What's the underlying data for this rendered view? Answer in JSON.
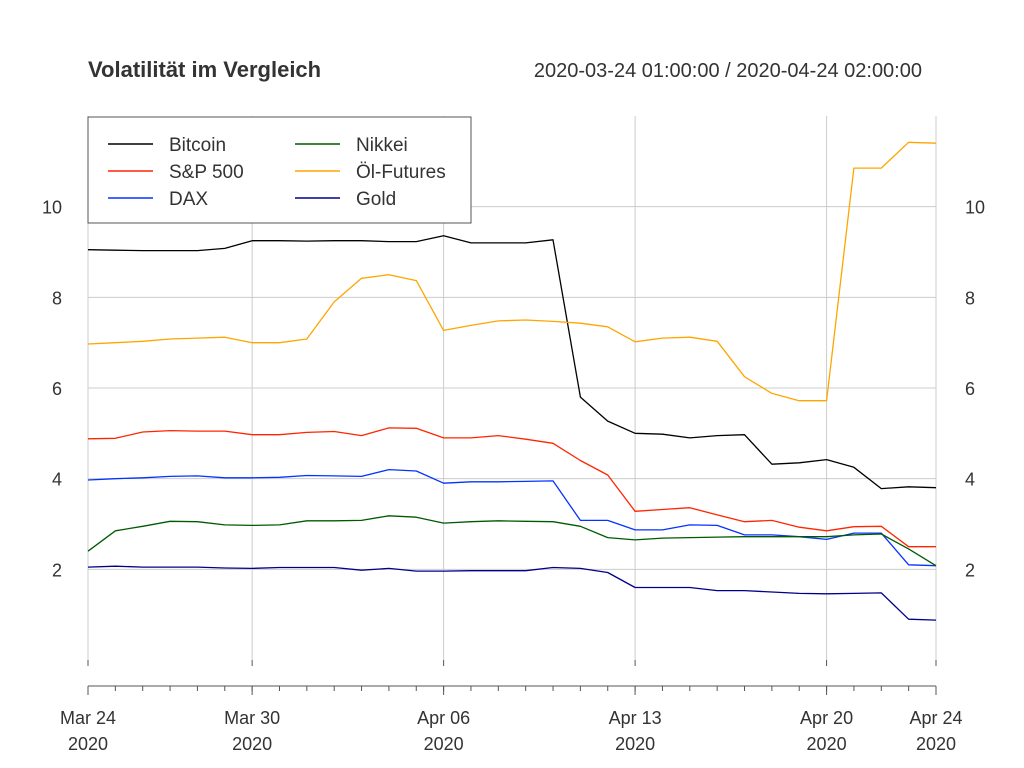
{
  "chart_data": {
    "type": "line",
    "title": "Volatilität im Vergleich",
    "date_range": "2020-03-24 01:00:00 / 2020-04-24 02:00:00",
    "xlabel": "",
    "ylabel": "",
    "x": [
      "2020-03-24",
      "2020-03-25",
      "2020-03-26",
      "2020-03-27",
      "2020-03-28",
      "2020-03-29",
      "2020-03-30",
      "2020-03-31",
      "2020-04-01",
      "2020-04-02",
      "2020-04-03",
      "2020-04-04",
      "2020-04-05",
      "2020-04-06",
      "2020-04-07",
      "2020-04-08",
      "2020-04-09",
      "2020-04-10",
      "2020-04-11",
      "2020-04-12",
      "2020-04-13",
      "2020-04-14",
      "2020-04-15",
      "2020-04-16",
      "2020-04-17",
      "2020-04-18",
      "2020-04-19",
      "2020-04-20",
      "2020-04-21",
      "2020-04-22",
      "2020-04-23",
      "2020-04-24"
    ],
    "xlim": [
      "2020-03-24",
      "2020-04-24"
    ],
    "ylim": [
      0,
      12
    ],
    "y_ticks": [
      2,
      4,
      6,
      8,
      10
    ],
    "x_ticks": [
      {
        "date": "2020-03-24",
        "line1": "Mar 24",
        "line2": "2020"
      },
      {
        "date": "2020-03-30",
        "line1": "Mar 30",
        "line2": "2020"
      },
      {
        "date": "2020-04-06",
        "line1": "Apr 06",
        "line2": "2020"
      },
      {
        "date": "2020-04-13",
        "line1": "Apr 13",
        "line2": "2020"
      },
      {
        "date": "2020-04-20",
        "line1": "Apr 20",
        "line2": "2020"
      },
      {
        "date": "2020-04-24",
        "line1": "Apr 24",
        "line2": "2020"
      }
    ],
    "grid": true,
    "legend_position": "top-left",
    "series": [
      {
        "name": "Bitcoin",
        "color": "#000000",
        "values": [
          9.05,
          9.04,
          9.03,
          9.03,
          9.03,
          9.08,
          9.25,
          9.25,
          9.24,
          9.25,
          9.25,
          9.23,
          9.23,
          9.36,
          9.2,
          9.2,
          9.2,
          9.27,
          5.8,
          5.27,
          5.0,
          4.98,
          4.9,
          4.95,
          4.97,
          4.32,
          4.35,
          4.42,
          4.25,
          3.78,
          3.82,
          3.8
        ]
      },
      {
        "name": "S&P 500",
        "color": "#ff2500",
        "values": [
          4.88,
          4.89,
          5.03,
          5.06,
          5.05,
          5.05,
          4.97,
          4.97,
          5.02,
          5.04,
          4.95,
          5.12,
          5.11,
          4.9,
          4.9,
          4.95,
          4.87,
          4.78,
          4.4,
          4.08,
          3.28,
          3.32,
          3.36,
          3.2,
          3.05,
          3.08,
          2.93,
          2.85,
          2.94,
          2.95,
          2.5,
          2.5
        ]
      },
      {
        "name": "DAX",
        "color": "#0433ff",
        "values": [
          3.97,
          4.0,
          4.02,
          4.05,
          4.06,
          4.02,
          4.02,
          4.03,
          4.07,
          4.06,
          4.05,
          4.2,
          4.17,
          3.9,
          3.93,
          3.93,
          3.94,
          3.95,
          3.08,
          3.08,
          2.87,
          2.87,
          2.98,
          2.97,
          2.76,
          2.76,
          2.72,
          2.66,
          2.8,
          2.8,
          2.1,
          2.08
        ]
      },
      {
        "name": "Nikkei",
        "color": "#005a00",
        "values": [
          2.4,
          2.85,
          2.95,
          3.06,
          3.05,
          2.98,
          2.97,
          2.98,
          3.07,
          3.07,
          3.08,
          3.18,
          3.15,
          3.02,
          3.05,
          3.07,
          3.06,
          3.05,
          2.95,
          2.7,
          2.65,
          2.69,
          2.7,
          2.71,
          2.72,
          2.72,
          2.72,
          2.72,
          2.76,
          2.78,
          2.45,
          2.08
        ]
      },
      {
        "name": "Öl-Futures",
        "color": "#ffa500",
        "values": [
          6.97,
          7.0,
          7.03,
          7.08,
          7.1,
          7.12,
          7.0,
          7.0,
          7.08,
          7.9,
          8.42,
          8.5,
          8.37,
          7.27,
          7.38,
          7.48,
          7.5,
          7.47,
          7.43,
          7.35,
          7.02,
          7.1,
          7.12,
          7.03,
          6.25,
          5.88,
          5.72,
          5.72,
          10.85,
          10.85,
          11.42,
          11.4
        ]
      },
      {
        "name": "Gold",
        "color": "#00008b",
        "values": [
          2.05,
          2.07,
          2.05,
          2.05,
          2.05,
          2.03,
          2.02,
          2.04,
          2.04,
          2.04,
          1.98,
          2.02,
          1.96,
          1.96,
          1.97,
          1.97,
          1.97,
          2.04,
          2.02,
          1.93,
          1.6,
          1.6,
          1.6,
          1.53,
          1.53,
          1.5,
          1.47,
          1.46,
          1.47,
          1.48,
          0.9,
          0.88
        ]
      }
    ]
  }
}
